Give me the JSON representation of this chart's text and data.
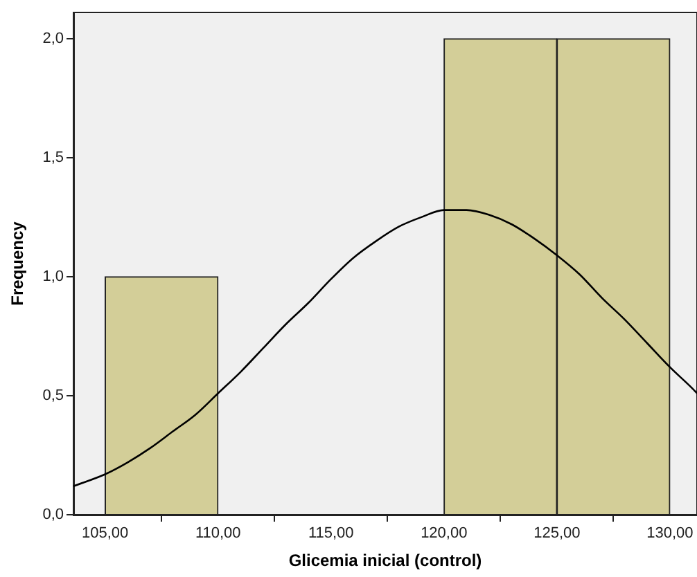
{
  "chart_data": {
    "type": "histogram",
    "xlabel": "Glicemia inicial (control)",
    "ylabel": "Frequency",
    "bins": [
      105,
      110,
      115,
      120,
      125,
      130
    ],
    "values": [
      1,
      0,
      0,
      2,
      2
    ],
    "color": "#d3ce98",
    "series": [
      {
        "type": "line",
        "color": "#000000",
        "x": [
          103.6,
          105,
          106,
          107,
          108,
          109,
          110,
          111,
          112,
          113,
          114,
          115,
          116,
          117,
          118,
          119,
          120,
          120.6,
          121,
          122,
          123,
          124,
          125,
          126,
          127,
          128,
          129,
          130,
          131,
          131.2
        ],
        "values": [
          0.12,
          0.17,
          0.22,
          0.28,
          0.35,
          0.42,
          0.51,
          0.6,
          0.7,
          0.8,
          0.89,
          0.99,
          1.08,
          1.15,
          1.21,
          1.25,
          1.28,
          1.28,
          1.28,
          1.26,
          1.22,
          1.16,
          1.09,
          1.01,
          0.91,
          0.82,
          0.72,
          0.62,
          0.53,
          0.51
        ]
      }
    ],
    "xlim": [
      103.6,
      131.2
    ],
    "xticks": [
      {
        "value": 105,
        "label": "105,00"
      },
      {
        "value": 110,
        "label": "110,00"
      },
      {
        "value": 115,
        "label": "115,00"
      },
      {
        "value": 120,
        "label": "120,00"
      },
      {
        "value": 125,
        "label": "125,00"
      },
      {
        "value": 130,
        "label": "130,00"
      }
    ],
    "ylim": [
      0,
      2.11
    ],
    "yticks": [
      {
        "value": 0,
        "label": "0,0"
      },
      {
        "value": 0.5,
        "label": "0,5"
      },
      {
        "value": 1,
        "label": "1,0"
      },
      {
        "value": 1.5,
        "label": "1,5"
      },
      {
        "value": 2,
        "label": "2,0"
      }
    ],
    "grid": false,
    "legend": false,
    "marker": "none",
    "line_style": "solid"
  }
}
